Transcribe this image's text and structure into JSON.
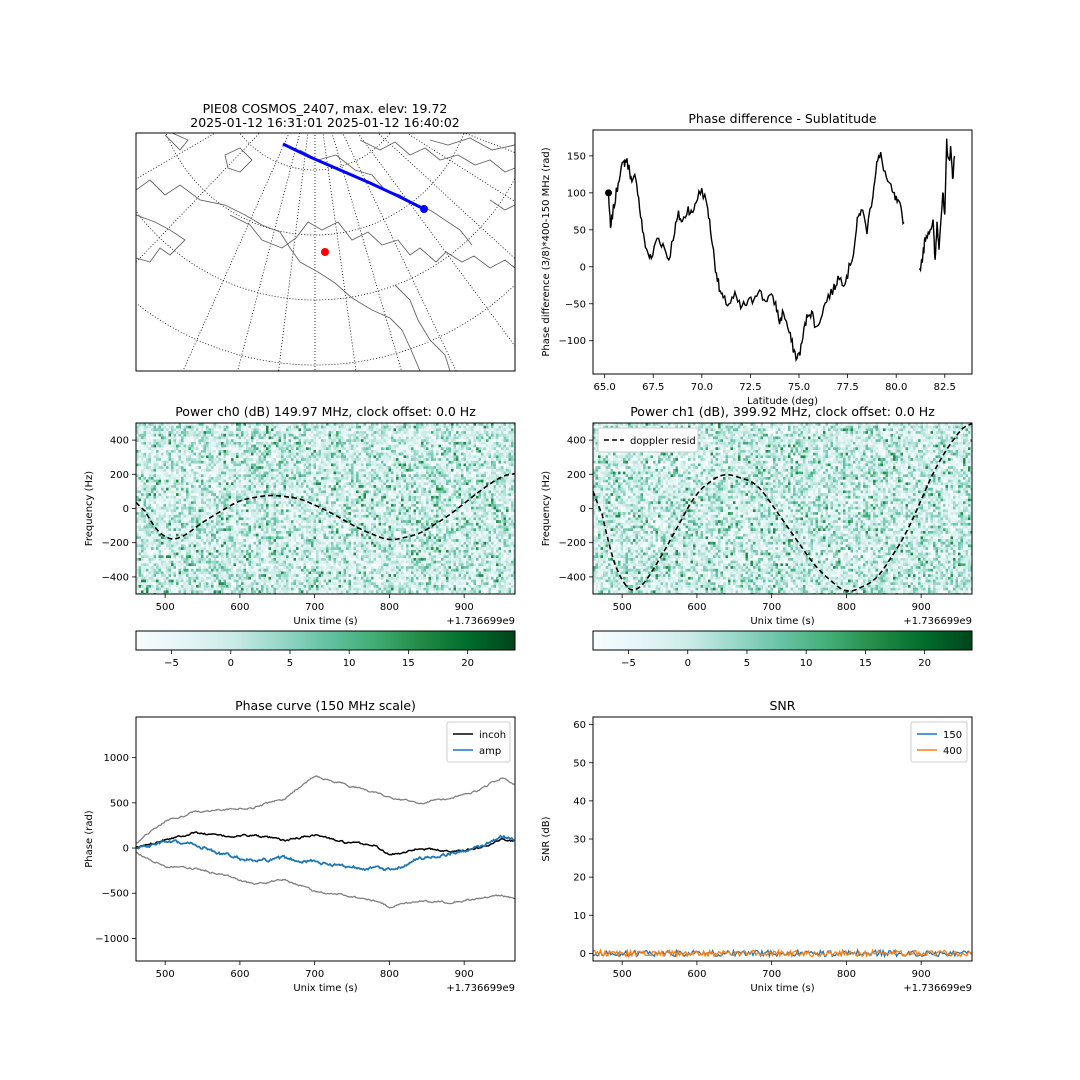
{
  "map_panel": {
    "title_line1": "PIE08 COSMOS_2407, max. elev: 19.72",
    "title_line2": "2025-01-12 16:31:01 2025-01-12 16:40:02"
  },
  "colorbars": [
    {
      "ticks": [
        -5,
        0,
        5,
        10,
        15,
        20
      ],
      "range": [
        -8,
        24
      ],
      "colormap": "BuGn"
    },
    {
      "ticks": [
        -5,
        0,
        5,
        10,
        15,
        20
      ],
      "range": [
        -8,
        24
      ],
      "colormap": "BuGn"
    }
  ],
  "colors": {
    "track": "#0000ff",
    "station": "#ff0000",
    "line_black": "#000000",
    "line_gray": "#808080",
    "series_blue": "#1f77b4",
    "series_orange": "#ff7f0e",
    "cmap_low": "#f7fcfd",
    "cmap_mid": "#66c2a4",
    "cmap_high": "#00441b"
  },
  "chart_data": [
    {
      "id": "phase_diff",
      "type": "line",
      "title": "Phase difference - Sublatitude",
      "xlabel": "Latitude (deg)",
      "ylabel": "Phase difference (3/8)*400-150 MHz (rad)",
      "xlim": [
        64.4,
        83.9
      ],
      "ylim": [
        -145,
        185
      ],
      "xticks": [
        "65.0",
        "67.5",
        "70.0",
        "72.5",
        "75.0",
        "77.5",
        "80.0",
        "82.5"
      ],
      "yticks": [
        -100,
        -50,
        0,
        50,
        100,
        150
      ],
      "marker": {
        "x": 65.2,
        "y": 100
      },
      "series": [
        {
          "x": [
            65.2,
            65.3,
            65.4,
            65.6,
            65.8,
            66.0,
            66.1,
            66.3,
            66.4,
            66.6,
            66.8,
            67.0,
            67.2,
            67.4,
            67.7,
            68.0,
            68.3,
            68.6,
            68.8,
            69.0,
            69.3,
            69.5,
            69.7,
            70.0,
            70.3,
            70.5,
            70.7,
            70.9,
            71.1,
            71.4,
            71.7,
            72.0,
            72.3,
            72.6,
            72.9,
            73.2,
            73.5,
            73.8,
            74.0,
            74.2,
            74.5,
            74.7,
            74.9,
            75.1,
            75.3,
            75.5,
            75.7,
            75.9,
            76.2,
            76.5,
            76.8,
            77.0,
            77.3,
            77.5,
            77.8,
            78.0,
            78.2,
            78.5,
            78.8,
            79.0,
            79.2,
            79.5,
            79.8,
            80.0,
            80.2,
            80.4
          ],
          "y": [
            100,
            50,
            70,
            100,
            130,
            140,
            145,
            130,
            110,
            125,
            80,
            40,
            20,
            10,
            40,
            30,
            10,
            50,
            70,
            60,
            80,
            70,
            90,
            105,
            80,
            40,
            0,
            -30,
            -45,
            -50,
            -40,
            -55,
            -50,
            -45,
            -30,
            -45,
            -40,
            -50,
            -75,
            -60,
            -90,
            -110,
            -125,
            -110,
            -80,
            -60,
            -65,
            -85,
            -60,
            -40,
            -30,
            -15,
            -20,
            -10,
            20,
            60,
            80,
            50,
            100,
            140,
            150,
            120,
            100,
            90,
            80,
            60
          ]
        },
        {
          "x": [
            81.2,
            81.4,
            81.5,
            81.7,
            81.9,
            82.0,
            82.1,
            82.2,
            82.4,
            82.5,
            82.6,
            82.7,
            82.8,
            82.9,
            83.0
          ],
          "y": [
            -5,
            20,
            40,
            50,
            60,
            5,
            60,
            30,
            100,
            65,
            170,
            140,
            160,
            120,
            150
          ]
        }
      ]
    },
    {
      "id": "power_ch0",
      "type": "heatmap",
      "title": "Power ch0 (dB) 149.97 MHz, clock offset: 0.0 Hz",
      "xlabel": "Unix time (s)",
      "ylabel": "Frequency (Hz)",
      "offset_label": "+1.736699e9",
      "xlim": [
        461,
        968
      ],
      "ylim": [
        -500,
        500
      ],
      "xticks": [
        500,
        600,
        700,
        800,
        900
      ],
      "yticks": [
        -400,
        -200,
        0,
        200,
        400
      ],
      "value_range": [
        -8,
        24
      ],
      "curve": {
        "x": [
          461,
          480,
          500,
          520,
          550,
          600,
          640,
          680,
          720,
          760,
          800,
          840,
          880,
          920,
          950,
          968
        ],
        "y": [
          90,
          -80,
          -180,
          -180,
          -80,
          50,
          80,
          60,
          -20,
          -120,
          -190,
          -150,
          -40,
          100,
          190,
          210
        ]
      }
    },
    {
      "id": "power_ch1",
      "type": "heatmap",
      "title": "Power ch1 (dB), 399.92 MHz, clock offset: 0.0 Hz",
      "xlabel": "Unix time (s)",
      "ylabel": "Frequency (Hz)",
      "offset_label": "+1.736699e9",
      "xlim": [
        461,
        968
      ],
      "ylim": [
        -500,
        500
      ],
      "xticks": [
        500,
        600,
        700,
        800,
        900
      ],
      "yticks": [
        -400,
        -200,
        0,
        200,
        400
      ],
      "value_range": [
        -8,
        24
      ],
      "legend": [
        "doppler resid"
      ],
      "curve": {
        "x": [
          461,
          480,
          500,
          520,
          550,
          600,
          635,
          680,
          720,
          760,
          800,
          840,
          880,
          920,
          950,
          968
        ],
        "y": [
          240,
          -200,
          -450,
          -500,
          -300,
          100,
          210,
          150,
          -100,
          -350,
          -500,
          -420,
          -150,
          250,
          450,
          520
        ]
      }
    },
    {
      "id": "phase_curve",
      "type": "line",
      "title": "Phase curve (150 MHz scale)",
      "xlabel": "Unix time (s)",
      "ylabel": "Phase (rad)",
      "offset_label": "+1.736699e9",
      "xlim": [
        461,
        968
      ],
      "ylim": [
        -1250,
        1450
      ],
      "xticks": [
        500,
        600,
        700,
        800,
        900
      ],
      "yticks": [
        -1000,
        -500,
        0,
        500,
        1000
      ],
      "legend": [
        "incoh",
        "amp"
      ],
      "series": [
        {
          "name": "incoh",
          "x": [
            461,
            500,
            540,
            580,
            620,
            660,
            700,
            740,
            780,
            800,
            840,
            880,
            920,
            950,
            968
          ],
          "y": [
            0,
            100,
            170,
            130,
            140,
            80,
            150,
            60,
            30,
            -80,
            0,
            -40,
            0,
            100,
            80
          ]
        },
        {
          "name": "amp",
          "x": [
            461,
            500,
            540,
            580,
            620,
            660,
            700,
            740,
            780,
            800,
            840,
            880,
            920,
            950,
            968
          ],
          "y": [
            0,
            60,
            40,
            -80,
            -150,
            -120,
            -150,
            -200,
            -220,
            -250,
            -120,
            -60,
            0,
            120,
            100
          ]
        },
        {
          "x": [
            461,
            500,
            540,
            580,
            620,
            660,
            700,
            740,
            780,
            800,
            840,
            880,
            920,
            950,
            968
          ],
          "y": [
            60,
            300,
            400,
            420,
            450,
            550,
            800,
            700,
            620,
            560,
            500,
            550,
            640,
            780,
            700
          ]
        },
        {
          "x": [
            461,
            500,
            540,
            580,
            620,
            660,
            700,
            740,
            780,
            800,
            840,
            880,
            920,
            950,
            968
          ],
          "y": [
            -50,
            -200,
            -230,
            -300,
            -400,
            -350,
            -480,
            -520,
            -580,
            -650,
            -580,
            -600,
            -560,
            -520,
            -560
          ]
        }
      ]
    },
    {
      "id": "snr",
      "type": "line",
      "title": "SNR",
      "xlabel": "Unix time (s)",
      "ylabel": "SNR (dB)",
      "offset_label": "+1.736699e9",
      "xlim": [
        461,
        968
      ],
      "ylim": [
        -2,
        62
      ],
      "xticks": [
        500,
        600,
        700,
        800,
        900
      ],
      "yticks": [
        0,
        10,
        20,
        30,
        40,
        50,
        60
      ],
      "legend": [
        "150",
        "400"
      ],
      "series": [
        {
          "name": "150",
          "x": [
            461,
            968
          ],
          "y": [
            0,
            0
          ]
        },
        {
          "name": "400",
          "x": [
            461,
            968
          ],
          "y": [
            0,
            0
          ]
        }
      ]
    }
  ]
}
